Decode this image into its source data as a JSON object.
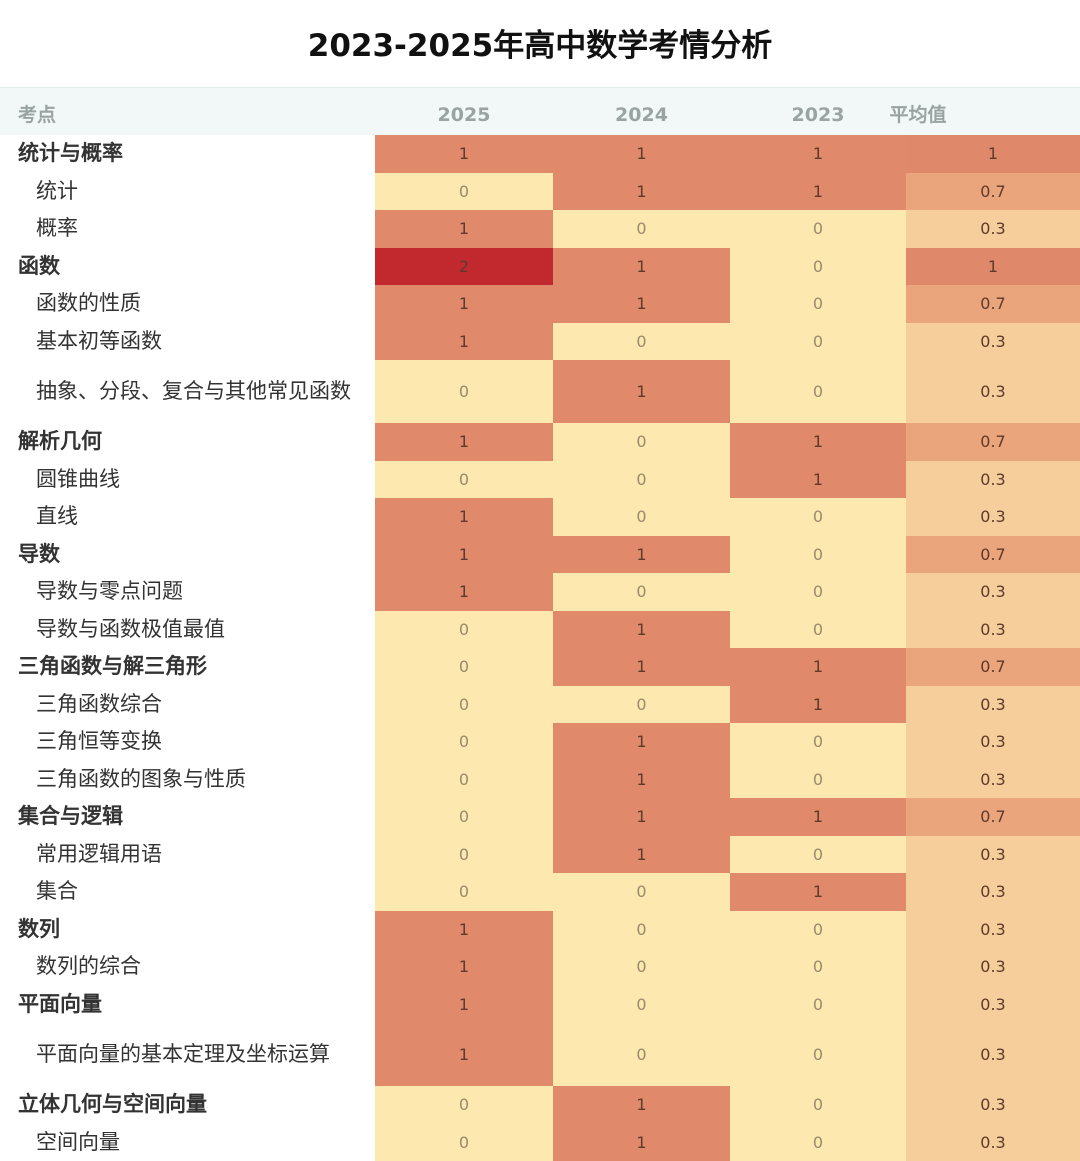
{
  "chart_data": {
    "type": "heatmap",
    "title": "2023-2025年高中数学考情分析",
    "columns": [
      "考点",
      "2025",
      "2024",
      "2023",
      "平均值"
    ],
    "rows": [
      {
        "label": "统计与概率",
        "level": "category",
        "values": [
          1,
          1,
          1
        ],
        "avg": "1"
      },
      {
        "label": "统计",
        "level": "sub",
        "values": [
          0,
          1,
          1
        ],
        "avg": "0.7"
      },
      {
        "label": "概率",
        "level": "sub",
        "values": [
          1,
          0,
          0
        ],
        "avg": "0.3"
      },
      {
        "label": "函数",
        "level": "category",
        "values": [
          2,
          1,
          0
        ],
        "avg": "1"
      },
      {
        "label": "函数的性质",
        "level": "sub",
        "values": [
          1,
          1,
          0
        ],
        "avg": "0.7"
      },
      {
        "label": "基本初等函数",
        "level": "sub",
        "values": [
          1,
          0,
          0
        ],
        "avg": "0.3"
      },
      {
        "label": "抽象、分段、复合与其他常见函数",
        "level": "sub",
        "values": [
          0,
          1,
          0
        ],
        "avg": "0.3"
      },
      {
        "label": "解析几何",
        "level": "category",
        "values": [
          1,
          0,
          1
        ],
        "avg": "0.7"
      },
      {
        "label": "圆锥曲线",
        "level": "sub",
        "values": [
          0,
          0,
          1
        ],
        "avg": "0.3"
      },
      {
        "label": "直线",
        "level": "sub",
        "values": [
          1,
          0,
          0
        ],
        "avg": "0.3"
      },
      {
        "label": "导数",
        "level": "category",
        "values": [
          1,
          1,
          0
        ],
        "avg": "0.7"
      },
      {
        "label": "导数与零点问题",
        "level": "sub",
        "values": [
          1,
          0,
          0
        ],
        "avg": "0.3"
      },
      {
        "label": "导数与函数极值最值",
        "level": "sub",
        "values": [
          0,
          1,
          0
        ],
        "avg": "0.3"
      },
      {
        "label": "三角函数与解三角形",
        "level": "category",
        "values": [
          0,
          1,
          1
        ],
        "avg": "0.7"
      },
      {
        "label": "三角函数综合",
        "level": "sub",
        "values": [
          0,
          0,
          1
        ],
        "avg": "0.3"
      },
      {
        "label": "三角恒等变换",
        "level": "sub",
        "values": [
          0,
          1,
          0
        ],
        "avg": "0.3"
      },
      {
        "label": "三角函数的图象与性质",
        "level": "sub",
        "values": [
          0,
          1,
          0
        ],
        "avg": "0.3"
      },
      {
        "label": "集合与逻辑",
        "level": "category",
        "values": [
          0,
          1,
          1
        ],
        "avg": "0.7"
      },
      {
        "label": "常用逻辑用语",
        "level": "sub",
        "values": [
          0,
          1,
          0
        ],
        "avg": "0.3"
      },
      {
        "label": "集合",
        "level": "sub",
        "values": [
          0,
          0,
          1
        ],
        "avg": "0.3"
      },
      {
        "label": "数列",
        "level": "category",
        "values": [
          1,
          0,
          0
        ],
        "avg": "0.3"
      },
      {
        "label": "数列的综合",
        "level": "sub",
        "values": [
          1,
          0,
          0
        ],
        "avg": "0.3"
      },
      {
        "label": "平面向量",
        "level": "category",
        "values": [
          1,
          0,
          0
        ],
        "avg": "0.3"
      },
      {
        "label": "平面向量的基本定理及坐标运算",
        "level": "sub",
        "values": [
          1,
          0,
          0
        ],
        "avg": "0.3"
      },
      {
        "label": "立体几何与空间向量",
        "level": "category",
        "values": [
          0,
          1,
          0
        ],
        "avg": "0.3"
      },
      {
        "label": "空间向量",
        "level": "sub",
        "values": [
          0,
          1,
          0
        ],
        "avg": "0.3"
      }
    ],
    "colors": {
      "value_0": "#fde8b0",
      "value_1": "#e0896b",
      "value_2": "#c1292e",
      "avg_0.3": "#f6ce9c",
      "avg_0.7": "#eba57d",
      "avg_1": "#e0886a",
      "text_light": "#9a8a6a",
      "text_dark": "#5e3a2a"
    }
  }
}
